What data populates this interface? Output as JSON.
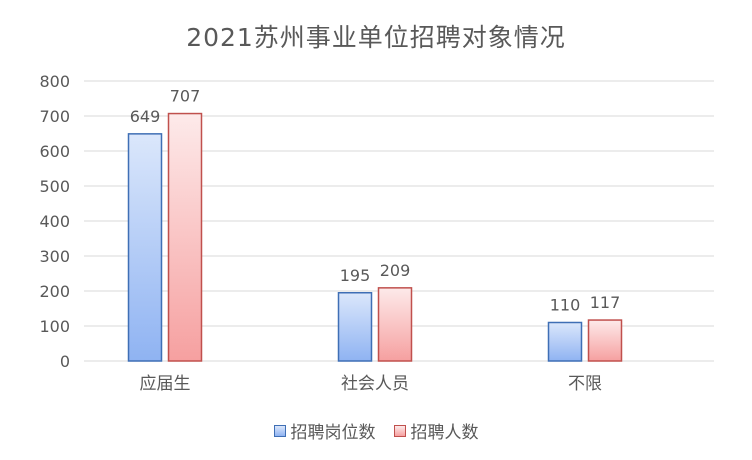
{
  "chart_data": {
    "type": "bar",
    "title": "2021苏州事业单位招聘对象情况",
    "categories": [
      "应届生",
      "社会人员",
      "不限"
    ],
    "series": [
      {
        "name": "招聘岗位数",
        "values": [
          649,
          195,
          110
        ],
        "fill_top": "#dbe7fb",
        "fill_bottom": "#8fb3f2",
        "stroke": "#3f6fb5"
      },
      {
        "name": "招聘人数",
        "values": [
          707,
          209,
          117
        ],
        "fill_top": "#fdeaea",
        "fill_bottom": "#f6a0a0",
        "stroke": "#c0504d"
      }
    ],
    "ylim": [
      0,
      800
    ],
    "yticks": [
      0,
      100,
      200,
      300,
      400,
      500,
      600,
      700,
      800
    ],
    "grid": true,
    "legend_position": "bottom",
    "xlabel": "",
    "ylabel": ""
  }
}
